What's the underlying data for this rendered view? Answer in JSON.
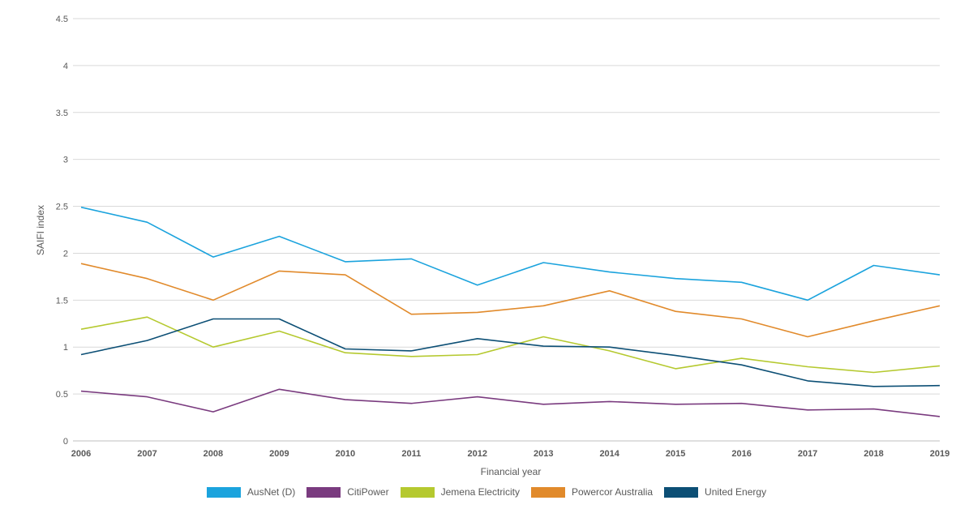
{
  "chart_data": {
    "type": "line",
    "title": "",
    "xlabel": "Financial year",
    "ylabel": "SAIFI index",
    "ylim": [
      0,
      4.5
    ],
    "yticks": [
      "0",
      "0.5",
      "1",
      "1.5",
      "2",
      "2.5",
      "3",
      "3.5",
      "4",
      "4.5"
    ],
    "x": [
      "2006",
      "2007",
      "2008",
      "2009",
      "2010",
      "2011",
      "2012",
      "2013",
      "2014",
      "2015",
      "2016",
      "2017",
      "2018",
      "2019"
    ],
    "grid": "horizontal",
    "legend_position": "bottom",
    "series": [
      {
        "name": "AusNet (D)",
        "color": "#1ba3dd",
        "values": [
          2.49,
          2.33,
          1.96,
          2.18,
          1.91,
          1.94,
          1.66,
          1.9,
          1.8,
          1.73,
          1.69,
          1.5,
          1.87,
          1.77
        ]
      },
      {
        "name": "CitiPower",
        "color": "#7a3b7f",
        "values": [
          0.53,
          0.47,
          0.31,
          0.55,
          0.44,
          0.4,
          0.47,
          0.39,
          0.42,
          0.39,
          0.4,
          0.33,
          0.34,
          0.26
        ]
      },
      {
        "name": "Jemena Electricity",
        "color": "#b5c92f",
        "values": [
          1.19,
          1.32,
          1.0,
          1.17,
          0.94,
          0.9,
          0.92,
          1.11,
          0.96,
          0.77,
          0.88,
          0.79,
          0.73,
          0.8
        ]
      },
      {
        "name": "Powercor Australia",
        "color": "#e18a2b",
        "values": [
          1.89,
          1.73,
          1.5,
          1.81,
          1.77,
          1.35,
          1.37,
          1.44,
          1.6,
          1.38,
          1.3,
          1.11,
          1.28,
          1.44
        ]
      },
      {
        "name": "United Energy",
        "color": "#0c4f75",
        "values": [
          0.92,
          1.07,
          1.3,
          1.3,
          0.98,
          0.96,
          1.09,
          1.01,
          1.0,
          0.91,
          0.81,
          0.64,
          0.58,
          0.59
        ]
      }
    ]
  }
}
